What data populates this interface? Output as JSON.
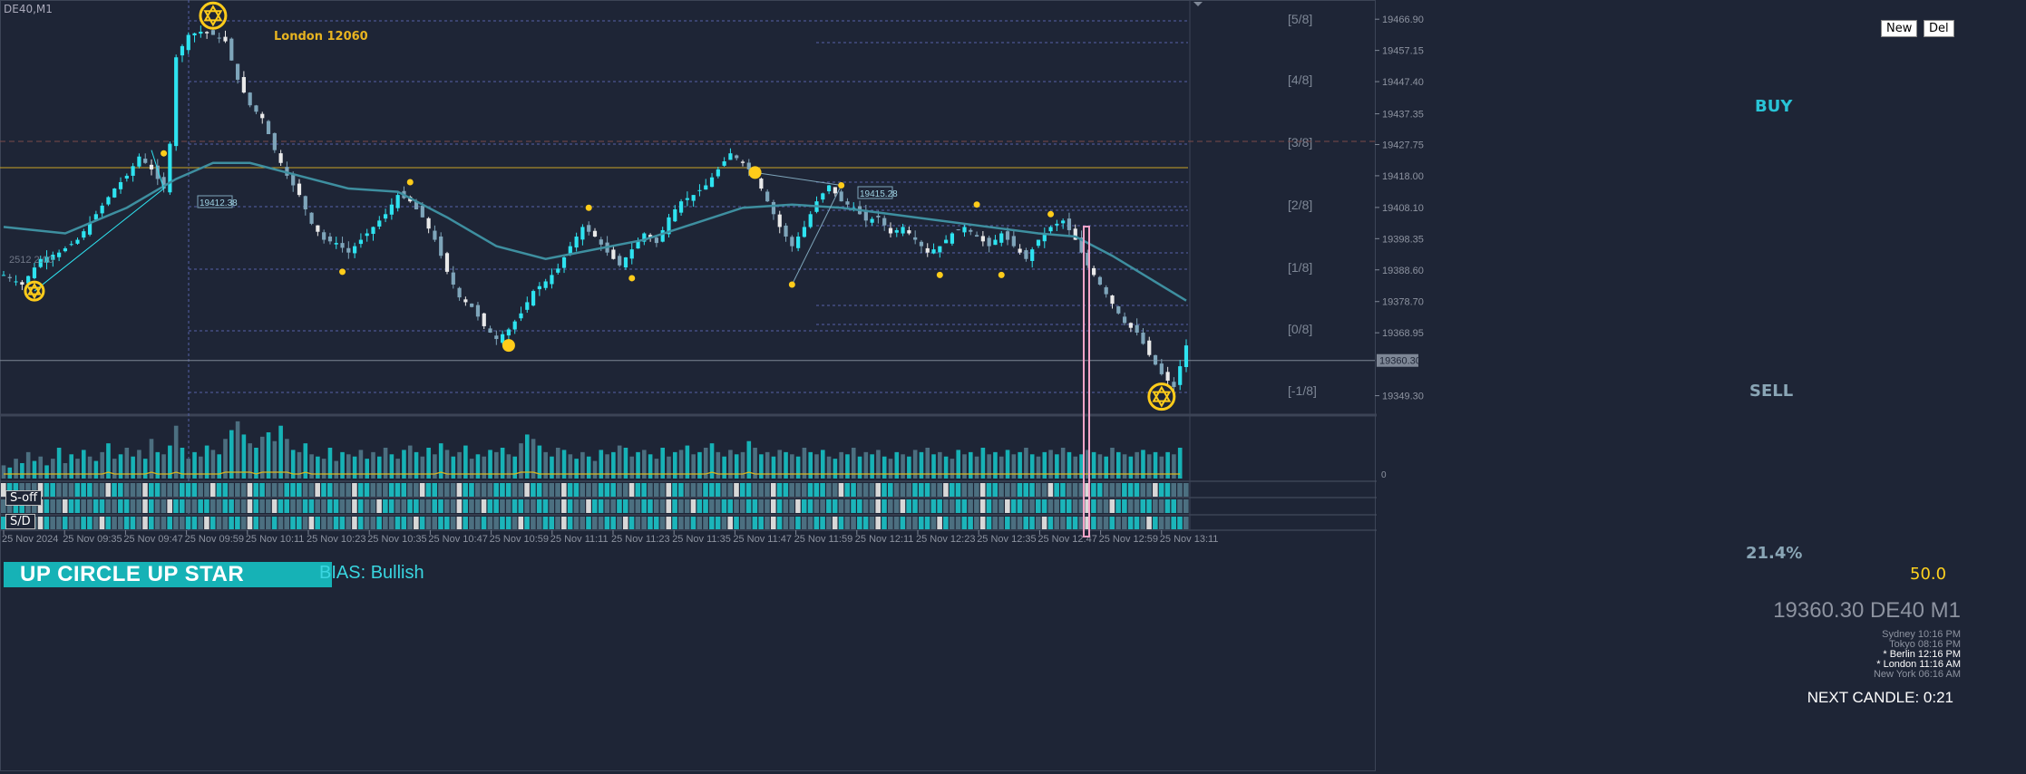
{
  "symbol_tag": "DE40,M1",
  "buttons": {
    "new": "New",
    "del": "Del",
    "s_off": "S-off",
    "s_d": "S/D"
  },
  "banner": "UP CIRCLE  UP STAR",
  "bias": "BIAS: Bullish",
  "price_display": "19360.30 DE40 M1",
  "sessions": [
    {
      "label": "Sydney 10:16 PM",
      "highlight": false
    },
    {
      "label": "Tokyo 08:16 PM",
      "highlight": false
    },
    {
      "label": "* Berlin 12:16 PM",
      "highlight": true
    },
    {
      "label": "* London 11:16 AM",
      "highlight": true
    },
    {
      "label": "New York 06:16 AM",
      "highlight": false
    }
  ],
  "next_candle": "NEXT CANDLE: 0:21",
  "signals": {
    "buy": "BUY",
    "sell": "SELL",
    "percent": "21.4%",
    "fifty": "50.0"
  },
  "london_label": "London 12060",
  "box_labels": [
    "19412.38",
    "19415.28"
  ],
  "current_price_tag": "19360.30",
  "faint_text": "2512 2.00",
  "colors": {
    "background": "#1e2536",
    "bull": "#2ee3f0",
    "bear_light": "#e9e9e9",
    "bear_blue": "#7ea5ba",
    "ma": "#3e8fa0",
    "signal_dot": "#ffcc1a",
    "pink": "#f5a3c7"
  },
  "chart_data": [
    {
      "type": "candlestick",
      "title": "",
      "murrey_levels": [
        "[5/8]",
        "[4/8]",
        "[3/8]",
        "[2/8]",
        "[1/8]",
        "[0/8]",
        "[-1/8]"
      ],
      "y_ticks": [
        19466.9,
        19457.15,
        19447.4,
        19437.35,
        19427.75,
        19418.0,
        19408.1,
        19398.35,
        19388.6,
        19378.7,
        19368.95,
        19349.3
      ],
      "ylim": [
        19343.8,
        19472.9
      ],
      "x_tick_labels": [
        "25 Nov 2024",
        "25 Nov 09:35",
        "25 Nov 09:47",
        "25 Nov 09:59",
        "25 Nov 10:11",
        "25 Nov 10:23",
        "25 Nov 10:35",
        "25 Nov 10:47",
        "25 Nov 10:59",
        "25 Nov 11:11",
        "25 Nov 11:23",
        "25 Nov 11:35",
        "25 Nov 11:47",
        "25 Nov 11:59",
        "25 Nov 12:11",
        "25 Nov 12:23",
        "25 Nov 12:35",
        "25 Nov 12:47",
        "25 Nov 12:59",
        "25 Nov 13:11"
      ],
      "price_path": [
        [
          0,
          19387
        ],
        [
          3,
          19384
        ],
        [
          6,
          19392
        ],
        [
          9,
          19394
        ],
        [
          12,
          19398
        ],
        [
          15,
          19406
        ],
        [
          18,
          19414
        ],
        [
          20,
          19418
        ],
        [
          22,
          19424
        ],
        [
          24,
          19420
        ],
        [
          26,
          19414
        ],
        [
          27,
          19428
        ],
        [
          28,
          19455
        ],
        [
          30,
          19462
        ],
        [
          32,
          19463
        ],
        [
          34,
          19462
        ],
        [
          36,
          19460
        ],
        [
          38,
          19448
        ],
        [
          40,
          19440
        ],
        [
          42,
          19436
        ],
        [
          44,
          19426
        ],
        [
          46,
          19418
        ],
        [
          48,
          19412
        ],
        [
          50,
          19403
        ],
        [
          52,
          19398
        ],
        [
          54,
          19397
        ],
        [
          56,
          19394
        ],
        [
          58,
          19398
        ],
        [
          60,
          19402
        ],
        [
          62,
          19406
        ],
        [
          64,
          19412
        ],
        [
          66,
          19410
        ],
        [
          68,
          19405
        ],
        [
          70,
          19398
        ],
        [
          72,
          19388
        ],
        [
          74,
          19380
        ],
        [
          76,
          19377
        ],
        [
          78,
          19371
        ],
        [
          80,
          19367
        ],
        [
          82,
          19370
        ],
        [
          84,
          19375
        ],
        [
          86,
          19382
        ],
        [
          88,
          19385
        ],
        [
          90,
          19389
        ],
        [
          92,
          19396
        ],
        [
          94,
          19402
        ],
        [
          96,
          19399
        ],
        [
          98,
          19394
        ],
        [
          100,
          19390
        ],
        [
          102,
          19395
        ],
        [
          104,
          19400
        ],
        [
          106,
          19397
        ],
        [
          108,
          19405
        ],
        [
          110,
          19410
        ],
        [
          112,
          19412
        ],
        [
          114,
          19415
        ],
        [
          116,
          19420
        ],
        [
          118,
          19425
        ],
        [
          120,
          19422
        ],
        [
          122,
          19418
        ],
        [
          124,
          19410
        ],
        [
          126,
          19402
        ],
        [
          128,
          19396
        ],
        [
          130,
          19402
        ],
        [
          132,
          19410
        ],
        [
          134,
          19415
        ],
        [
          136,
          19410
        ],
        [
          138,
          19408
        ],
        [
          140,
          19404
        ],
        [
          142,
          19405
        ],
        [
          144,
          19400
        ],
        [
          146,
          19402
        ],
        [
          148,
          19398
        ],
        [
          150,
          19394
        ],
        [
          152,
          19396
        ],
        [
          154,
          19400
        ],
        [
          156,
          19402
        ],
        [
          158,
          19399
        ],
        [
          160,
          19396
        ],
        [
          162,
          19400
        ],
        [
          164,
          19396
        ],
        [
          166,
          19392
        ],
        [
          168,
          19398
        ],
        [
          170,
          19402
        ],
        [
          172,
          19404
        ],
        [
          174,
          19398
        ],
        [
          176,
          19390
        ],
        [
          178,
          19384
        ],
        [
          180,
          19378
        ],
        [
          182,
          19372
        ],
        [
          184,
          19369
        ],
        [
          186,
          19362
        ],
        [
          188,
          19356
        ],
        [
          190,
          19352
        ],
        [
          192,
          19365
        ]
      ],
      "moving_average": [
        [
          0,
          19402
        ],
        [
          10,
          19400
        ],
        [
          20,
          19408
        ],
        [
          28,
          19417
        ],
        [
          34,
          19422
        ],
        [
          40,
          19422
        ],
        [
          48,
          19418
        ],
        [
          56,
          19414
        ],
        [
          64,
          19413
        ],
        [
          72,
          19405
        ],
        [
          80,
          19396
        ],
        [
          88,
          19392
        ],
        [
          96,
          19395
        ],
        [
          104,
          19398
        ],
        [
          112,
          19403
        ],
        [
          120,
          19408
        ],
        [
          128,
          19409
        ],
        [
          136,
          19408
        ],
        [
          144,
          19406
        ],
        [
          152,
          19404
        ],
        [
          160,
          19402
        ],
        [
          168,
          19400
        ],
        [
          174,
          19399
        ],
        [
          180,
          19393
        ],
        [
          186,
          19386
        ],
        [
          192,
          19379
        ]
      ],
      "signal_dots": [
        [
          26,
          19425
        ],
        [
          66,
          19416
        ],
        [
          55,
          19388
        ],
        [
          82,
          19365
        ],
        [
          95,
          19408
        ],
        [
          102,
          19386
        ],
        [
          122,
          19419
        ],
        [
          136,
          19415
        ],
        [
          128,
          19384
        ],
        [
          152,
          19387
        ],
        [
          158,
          19409
        ],
        [
          162,
          19387
        ],
        [
          170,
          19406
        ]
      ],
      "star_markers": [
        [
          5,
          19382
        ],
        [
          34,
          19468
        ],
        [
          188,
          19349
        ]
      ],
      "horizontal_lines": {
        "london_line": 19419,
        "dashed_red": 19430,
        "current_price": 19360.3
      }
    },
    {
      "type": "bar",
      "title": "",
      "series": [
        {
          "name": "",
          "values": [
            6,
            5,
            9,
            7,
            12,
            8,
            10,
            6,
            9,
            14,
            7,
            11,
            9,
            13,
            10,
            8,
            12,
            16,
            9,
            11,
            14,
            10,
            13,
            9,
            18,
            12,
            11,
            15,
            24,
            14,
            9,
            12,
            10,
            15,
            13,
            11,
            18,
            22,
            26,
            20,
            16,
            14,
            19,
            21,
            17,
            24,
            18,
            13,
            12,
            16,
            11,
            10,
            9,
            14,
            8,
            12,
            11,
            10,
            13,
            9,
            12,
            10,
            14,
            11,
            9,
            13,
            15,
            12,
            10,
            14,
            11,
            16,
            13,
            10,
            12,
            15,
            9,
            11,
            10,
            13,
            12,
            14,
            11,
            10,
            16,
            20,
            18,
            15,
            12,
            10,
            14,
            13,
            11,
            9,
            12,
            10,
            8,
            13,
            11,
            12,
            15,
            14,
            10,
            12,
            13,
            11,
            9,
            14,
            10,
            12,
            13,
            15,
            11,
            12,
            14,
            16,
            12,
            10,
            13,
            11,
            12,
            17,
            14,
            11,
            12,
            10,
            13,
            12,
            11,
            10,
            14,
            12,
            11,
            13,
            10,
            9,
            12,
            11,
            14,
            10,
            12,
            11,
            13,
            10,
            9,
            12,
            11,
            10,
            13,
            12,
            14,
            11,
            12,
            10,
            9,
            13,
            11,
            12,
            10,
            14,
            11,
            12,
            10,
            13,
            11,
            12,
            14,
            11,
            10,
            12,
            13,
            11,
            14,
            12,
            10,
            11,
            13,
            12,
            11,
            10,
            14,
            12,
            11,
            10,
            12,
            13,
            11,
            12,
            10,
            12,
            11,
            14
          ]
        }
      ]
    }
  ]
}
